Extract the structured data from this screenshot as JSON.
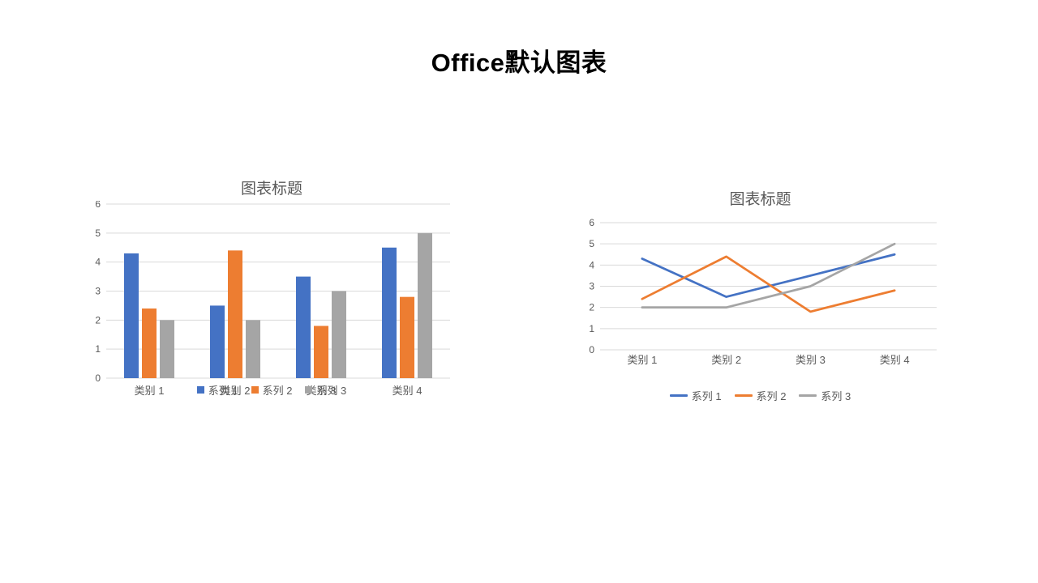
{
  "title": "Office默认图表",
  "colors": {
    "background": "#FFFFFF",
    "grid": "#D9D9D9",
    "axis_text": "#595959",
    "chart_title_text": "#595959",
    "series1": "#4472C4",
    "series2": "#ED7D31",
    "series3": "#A5A5A5"
  },
  "chart_data": [
    {
      "type": "bar",
      "title": "图表标题",
      "categories": [
        "类别 1",
        "类别 2",
        "类别 3",
        "类别 4"
      ],
      "series": [
        {
          "name": "系列 1",
          "color": "#4472C4",
          "values": [
            4.3,
            2.5,
            3.5,
            4.5
          ]
        },
        {
          "name": "系列 2",
          "color": "#ED7D31",
          "values": [
            2.4,
            4.4,
            1.8,
            2.8
          ]
        },
        {
          "name": "系列 3",
          "color": "#A5A5A5",
          "values": [
            2,
            2,
            3,
            5
          ]
        }
      ],
      "xlabel": "",
      "ylabel": "",
      "ylim": [
        0,
        6
      ],
      "ytick_step": 1,
      "grid": true,
      "legend_position": "bottom"
    },
    {
      "type": "line",
      "title": "图表标题",
      "categories": [
        "类别 1",
        "类别 2",
        "类别 3",
        "类别 4"
      ],
      "series": [
        {
          "name": "系列 1",
          "color": "#4472C4",
          "values": [
            4.3,
            2.5,
            3.5,
            4.5
          ]
        },
        {
          "name": "系列 2",
          "color": "#ED7D31",
          "values": [
            2.4,
            4.4,
            1.8,
            2.8
          ]
        },
        {
          "name": "系列 3",
          "color": "#A5A5A5",
          "values": [
            2,
            2,
            3,
            5
          ]
        }
      ],
      "xlabel": "",
      "ylabel": "",
      "ylim": [
        0,
        6
      ],
      "ytick_step": 1,
      "grid": true,
      "legend_position": "bottom"
    }
  ]
}
